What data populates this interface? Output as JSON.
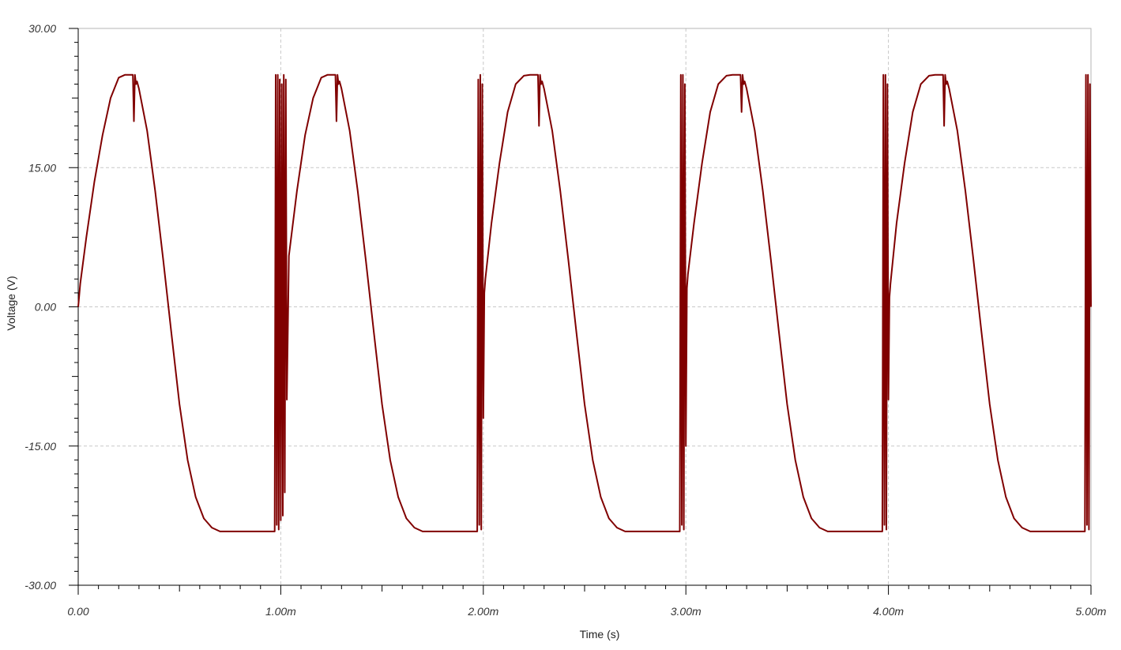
{
  "chart_data": {
    "type": "line",
    "xlabel": "Time (s)",
    "ylabel": "Voltage (V)",
    "xlim": [
      0,
      0.005
    ],
    "ylim": [
      -30,
      30
    ],
    "x_ticks": [
      {
        "value": 0,
        "label": "0.00"
      },
      {
        "value": 0.001,
        "label": "1.00m"
      },
      {
        "value": 0.002,
        "label": "2.00m"
      },
      {
        "value": 0.003,
        "label": "3.00m"
      },
      {
        "value": 0.004,
        "label": "4.00m"
      },
      {
        "value": 0.005,
        "label": "5.00m"
      }
    ],
    "y_ticks": [
      {
        "value": 30,
        "label": "30.00"
      },
      {
        "value": 15,
        "label": "15.00"
      },
      {
        "value": 0,
        "label": "0.00"
      },
      {
        "value": -15,
        "label": "-15.00"
      },
      {
        "value": -30,
        "label": "-30.00"
      }
    ],
    "grid": true,
    "series_color": "#800000",
    "series": [
      {
        "x": [
          0.0,
          1e-05,
          4e-05,
          8e-05,
          0.00012,
          0.00016,
          0.0002,
          0.00023,
          0.00025,
          0.00027,
          0.000275,
          0.00028,
          0.000285,
          0.00029,
          0.0003,
          0.00034,
          0.00038,
          0.00042,
          0.00046,
          0.0005,
          0.00054,
          0.00058,
          0.00062,
          0.00066,
          0.0007,
          0.00097,
          0.000975,
          0.00098,
          0.000985,
          0.00099,
          0.000995,
          0.001,
          0.001005,
          0.00101,
          0.001015,
          0.00102,
          0.001025,
          0.00103,
          0.00104,
          0.00108,
          0.00112,
          0.00116,
          0.0012,
          0.00123,
          0.00125,
          0.00127,
          0.001275,
          0.00128,
          0.001285,
          0.00129,
          0.0013,
          0.00134,
          0.00138,
          0.00142,
          0.00146,
          0.0015,
          0.00154,
          0.00158,
          0.00162,
          0.00166,
          0.0017,
          0.00197,
          0.001975,
          0.00198,
          0.001985,
          0.00199,
          0.001995,
          0.002,
          0.002005,
          0.00201,
          0.00204,
          0.00208,
          0.00212,
          0.00216,
          0.0022,
          0.00223,
          0.00225,
          0.00227,
          0.002275,
          0.00228,
          0.002285,
          0.00229,
          0.0023,
          0.00234,
          0.00238,
          0.00242,
          0.00246,
          0.0025,
          0.00254,
          0.00258,
          0.00262,
          0.00266,
          0.0027,
          0.00297,
          0.002975,
          0.00298,
          0.002985,
          0.00299,
          0.002995,
          0.003,
          0.003005,
          0.00301,
          0.00304,
          0.00308,
          0.00312,
          0.00316,
          0.0032,
          0.00323,
          0.00325,
          0.00327,
          0.003275,
          0.00328,
          0.003285,
          0.00329,
          0.0033,
          0.00334,
          0.00338,
          0.00342,
          0.00346,
          0.0035,
          0.00354,
          0.00358,
          0.00362,
          0.00366,
          0.0037,
          0.00397,
          0.003975,
          0.00398,
          0.003985,
          0.00399,
          0.003995,
          0.004,
          0.004005,
          0.00401,
          0.00404,
          0.00408,
          0.00412,
          0.00416,
          0.0042,
          0.00423,
          0.00425,
          0.00427,
          0.004275,
          0.00428,
          0.004285,
          0.00429,
          0.0043,
          0.00434,
          0.00438,
          0.00442,
          0.00446,
          0.0045,
          0.00454,
          0.00458,
          0.00462,
          0.00466,
          0.0047,
          0.00497,
          0.004975,
          0.00498,
          0.004985,
          0.00499,
          0.004995,
          0.005
        ],
        "y": [
          0.0,
          2.5,
          7.5,
          13.5,
          18.5,
          22.5,
          24.7,
          25.0,
          25.0,
          25.0,
          20.0,
          25.0,
          24.0,
          24.3,
          23.5,
          19.0,
          12.5,
          5.0,
          -2.8,
          -10.5,
          -16.5,
          -20.5,
          -22.8,
          -23.8,
          -24.2,
          -24.2,
          25.0,
          -23.5,
          25.0,
          -24.0,
          24.5,
          -23.0,
          24.0,
          -22.5,
          25.0,
          -20.0,
          24.5,
          -10.0,
          5.5,
          12.5,
          18.5,
          22.5,
          24.7,
          25.0,
          25.0,
          25.0,
          20.0,
          25.0,
          24.0,
          24.3,
          23.5,
          19.0,
          12.5,
          5.0,
          -2.8,
          -10.5,
          -16.5,
          -20.5,
          -22.8,
          -23.8,
          -24.2,
          -24.2,
          24.5,
          -23.5,
          25.0,
          -24.0,
          24.0,
          -12.0,
          1.5,
          3.0,
          9.0,
          15.5,
          21.0,
          24.0,
          24.9,
          25.0,
          25.0,
          25.0,
          19.5,
          25.0,
          24.0,
          24.3,
          23.5,
          19.0,
          12.5,
          5.0,
          -2.8,
          -10.5,
          -16.5,
          -20.5,
          -22.8,
          -23.8,
          -24.2,
          -24.2,
          25.0,
          -23.5,
          25.0,
          -24.0,
          24.0,
          -15.0,
          2.0,
          3.5,
          9.0,
          15.5,
          21.0,
          24.0,
          24.9,
          25.0,
          25.0,
          25.0,
          21.0,
          25.0,
          24.0,
          24.3,
          23.5,
          19.0,
          12.5,
          5.0,
          -2.8,
          -10.5,
          -16.5,
          -20.5,
          -22.8,
          -23.8,
          -24.2,
          -24.2,
          25.0,
          -23.5,
          25.0,
          -24.0,
          24.0,
          -10.0,
          1.0,
          2.5,
          9.0,
          15.5,
          21.0,
          24.0,
          24.9,
          25.0,
          25.0,
          25.0,
          19.5,
          25.0,
          24.0,
          24.3,
          23.5,
          19.0,
          12.5,
          5.0,
          -2.8,
          -10.5,
          -16.5,
          -20.5,
          -22.8,
          -23.8,
          -24.2,
          -24.2,
          25.0,
          -23.5,
          25.0,
          -24.0,
          24.0,
          0.0
        ]
      }
    ]
  }
}
